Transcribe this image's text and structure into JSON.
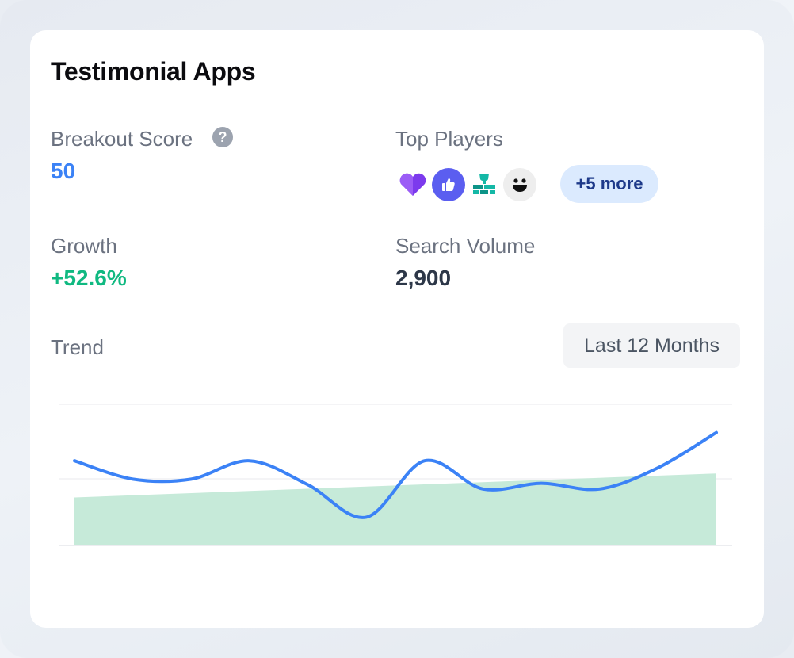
{
  "card": {
    "title": "Testimonial Apps"
  },
  "metrics": {
    "breakout_score": {
      "label": "Breakout Score",
      "value": "50",
      "color": "#3b82f6"
    },
    "top_players": {
      "label": "Top Players",
      "icons": [
        "purple-heart-icon",
        "thumbs-up-icon",
        "trophy-wall-icon",
        "smiley-face-icon"
      ],
      "more": "+5 more"
    },
    "growth": {
      "label": "Growth",
      "value": "+52.6%",
      "color": "#10b981"
    },
    "search_volume": {
      "label": "Search Volume",
      "value": "2,900",
      "color": "#2d3748"
    }
  },
  "trend": {
    "label": "Trend",
    "range_button": "Last 12 Months"
  },
  "chart_data": {
    "type": "line",
    "series": [
      {
        "values": [
          60,
          47,
          47,
          60,
          43,
          20,
          60,
          40,
          44,
          40,
          55,
          80
        ],
        "color": "#3b82f6"
      }
    ],
    "trendline": {
      "start": 34,
      "end": 51,
      "color": "#c6ead9"
    },
    "ylim": [
      0,
      100
    ],
    "grid": true
  }
}
